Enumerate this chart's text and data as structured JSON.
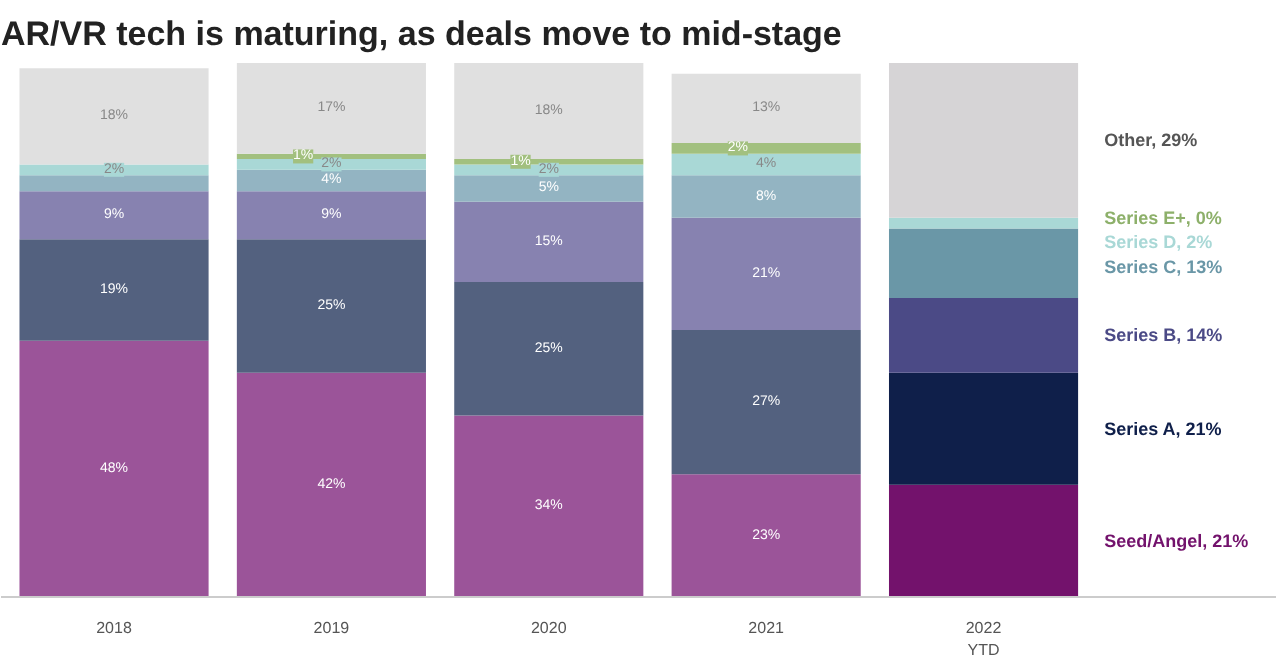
{
  "chart_data": {
    "type": "bar",
    "stacked": true,
    "title": "AR/VR tech is maturing, as deals move to mid-stage",
    "categories": [
      "2018",
      "2019",
      "2020",
      "2021",
      "2022 YTD"
    ],
    "ylim": [
      0,
      100
    ],
    "tick_labels": "x",
    "grid": false,
    "series": [
      {
        "name": "Seed/Angel, 21%",
        "values": [
          48,
          42,
          34,
          23,
          21
        ],
        "colors": [
          "#9b5499",
          "#9b5499",
          "#9b5499",
          "#9b5499",
          "#73126c"
        ],
        "value_labels": [
          "48%",
          "42%",
          "34%",
          "23%",
          null
        ]
      },
      {
        "name": "Series A, 21%",
        "values": [
          19,
          25,
          25,
          27,
          21
        ],
        "colors": [
          "#53617f",
          "#53617f",
          "#53617f",
          "#53617f",
          "#0f1f4a"
        ],
        "value_labels": [
          "19%",
          "25%",
          "25%",
          "27%",
          null
        ]
      },
      {
        "name": "Series B, 14%",
        "values": [
          9,
          9,
          15,
          21,
          14
        ],
        "colors": [
          "#8782b0",
          "#8782b0",
          "#8782b0",
          "#8782b0",
          "#4b4a86"
        ],
        "value_labels": [
          "9%",
          "9%",
          "15%",
          "21%",
          null
        ]
      },
      {
        "name": "Series C, 13%",
        "values": [
          3,
          4,
          5,
          8,
          13
        ],
        "colors": [
          "#93b4c2",
          "#93b4c2",
          "#93b4c2",
          "#93b4c2",
          "#6a97a7"
        ],
        "value_labels": [
          null,
          "4%",
          "5%",
          "8%",
          null
        ]
      },
      {
        "name": "Series D, 2%",
        "values": [
          2,
          2,
          2,
          4,
          2
        ],
        "colors": [
          "#a9d8d6",
          "#a9d8d6",
          "#a9d8d6",
          "#a9d8d6",
          "#a9d8d6"
        ],
        "value_labels": [
          "2%",
          "2%",
          "2%",
          "4%",
          null
        ]
      },
      {
        "name": "Series E+, 0%",
        "values": [
          0,
          1,
          1,
          2,
          0
        ],
        "colors": [
          "#a2c07f",
          "#a2c07f",
          "#a2c07f",
          "#a2c07f",
          "#8db06a"
        ],
        "value_labels": [
          null,
          "1%",
          "1%",
          "2%",
          null
        ]
      },
      {
        "name": "Other, 29%",
        "values": [
          18,
          17,
          18,
          13,
          29
        ],
        "colors": [
          "#e0e0e0",
          "#e0e0e0",
          "#e0e0e0",
          "#e0e0e0",
          "#d6d4d6"
        ],
        "value_labels": [
          "18%",
          "17%",
          "18%",
          "13%",
          null
        ]
      }
    ]
  }
}
